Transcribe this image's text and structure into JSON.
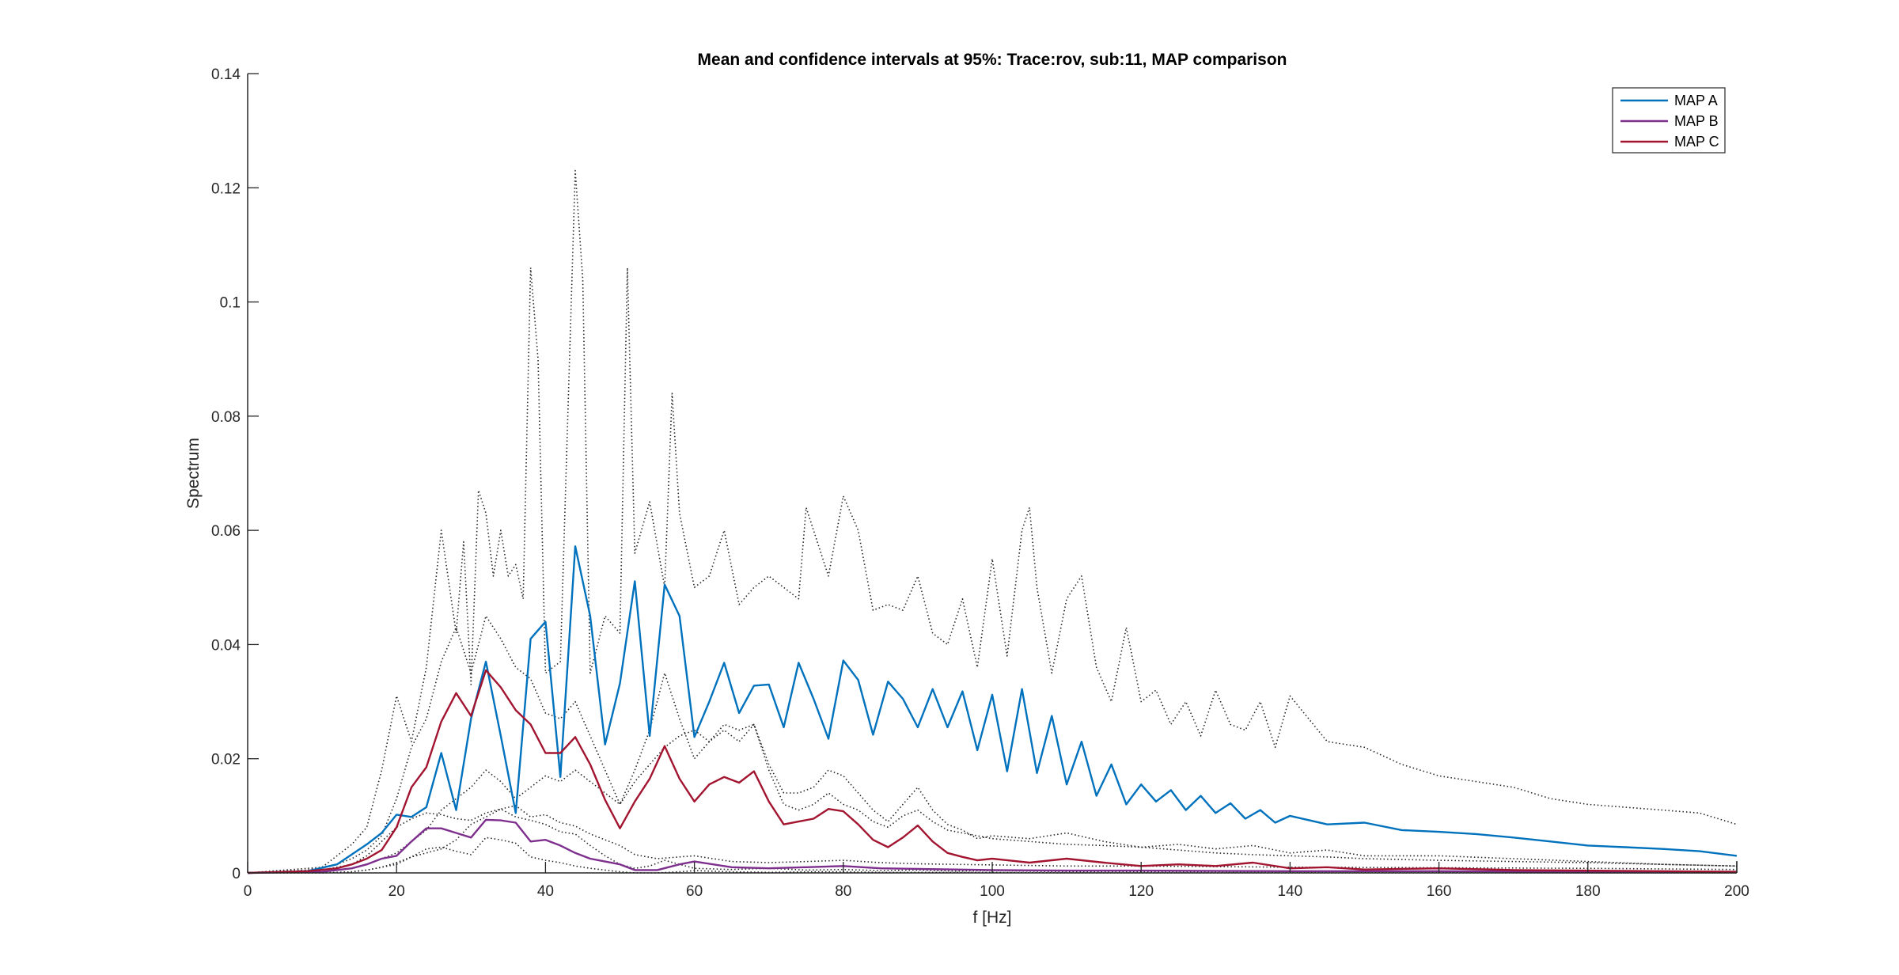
{
  "chart_data": {
    "type": "line",
    "title": "Mean and confidence intervals at 95%: Trace:rov, sub:11, MAP comparison",
    "xlabel": "f [Hz]",
    "ylabel": "Spectrum",
    "xlim": [
      0,
      200
    ],
    "ylim": [
      0,
      0.14
    ],
    "xticks": [
      0,
      20,
      40,
      60,
      80,
      100,
      120,
      140,
      160,
      180,
      200
    ],
    "xtick_labels": [
      "0",
      "20",
      "40",
      "60",
      "80",
      "100",
      "120",
      "140",
      "160",
      "180",
      "200"
    ],
    "yticks": [
      0,
      0.02,
      0.04,
      0.06,
      0.08,
      0.1,
      0.12,
      0.14
    ],
    "ytick_labels": [
      "0",
      "0.02",
      "0.04",
      "0.06",
      "0.08",
      "0.1",
      "0.12",
      "0.14"
    ],
    "grid": false,
    "legend_position": "top-right",
    "series": [
      {
        "name": "MAP A",
        "color": "#0072BD",
        "style": "solid",
        "x": [
          0,
          8,
          12,
          16,
          18,
          20,
          22,
          24,
          26,
          28,
          30,
          32,
          34,
          36,
          38,
          40,
          42,
          44,
          46,
          48,
          50,
          52,
          54,
          56,
          58,
          60,
          62,
          64,
          66,
          68,
          70,
          72,
          74,
          76,
          78,
          80,
          82,
          84,
          86,
          88,
          90,
          92,
          94,
          96,
          98,
          100,
          102,
          104,
          106,
          108,
          110,
          112,
          114,
          116,
          118,
          120,
          122,
          124,
          126,
          128,
          130,
          132,
          134,
          136,
          138,
          140,
          145,
          150,
          155,
          160,
          165,
          170,
          175,
          180,
          185,
          190,
          195,
          200
        ],
        "y": [
          0,
          0.0003,
          0.0015,
          0.005,
          0.007,
          0.0102,
          0.0098,
          0.0115,
          0.021,
          0.011,
          0.027,
          0.037,
          0.024,
          0.0105,
          0.041,
          0.044,
          0.0168,
          0.0572,
          0.045,
          0.0225,
          0.0332,
          0.0511,
          0.024,
          0.0505,
          0.045,
          0.0238,
          0.03,
          0.0368,
          0.028,
          0.0328,
          0.033,
          0.0255,
          0.0368,
          0.0305,
          0.0235,
          0.0372,
          0.0338,
          0.0242,
          0.0335,
          0.0305,
          0.0255,
          0.0322,
          0.0255,
          0.0318,
          0.0215,
          0.0312,
          0.0178,
          0.0322,
          0.0175,
          0.0275,
          0.0155,
          0.023,
          0.0135,
          0.019,
          0.012,
          0.0155,
          0.0125,
          0.0145,
          0.011,
          0.0135,
          0.0105,
          0.0122,
          0.0095,
          0.011,
          0.0088,
          0.01,
          0.0085,
          0.0088,
          0.0075,
          0.0072,
          0.0068,
          0.0062,
          0.0055,
          0.0048,
          0.0045,
          0.0042,
          0.0038,
          0.003
        ]
      },
      {
        "name": "MAP B",
        "color": "#7E2F8E",
        "style": "solid",
        "x": [
          0,
          10,
          14,
          16,
          18,
          20,
          22,
          24,
          26,
          28,
          30,
          32,
          34,
          36,
          38,
          40,
          42,
          44,
          46,
          48,
          50,
          52,
          55,
          58,
          60,
          65,
          70,
          75,
          80,
          85,
          90,
          95,
          100,
          110,
          120,
          140,
          160,
          180,
          200
        ],
        "y": [
          0,
          0.0002,
          0.0008,
          0.0015,
          0.0025,
          0.003,
          0.0055,
          0.0078,
          0.0078,
          0.007,
          0.0062,
          0.0093,
          0.0092,
          0.0088,
          0.0055,
          0.0058,
          0.0048,
          0.0035,
          0.0025,
          0.002,
          0.0015,
          0.0005,
          0.0005,
          0.0015,
          0.002,
          0.001,
          0.0008,
          0.001,
          0.0012,
          0.0008,
          0.0007,
          0.0006,
          0.0005,
          0.0004,
          0.0004,
          0.0003,
          0.0003,
          0.0002,
          0.0002
        ]
      },
      {
        "name": "MAP C",
        "color": "#A2142F",
        "style": "solid",
        "x": [
          0,
          8,
          12,
          14,
          16,
          18,
          20,
          22,
          24,
          26,
          28,
          30,
          32,
          34,
          36,
          38,
          40,
          42,
          44,
          46,
          48,
          50,
          52,
          54,
          56,
          58,
          60,
          62,
          64,
          66,
          68,
          70,
          72,
          74,
          76,
          78,
          80,
          82,
          84,
          86,
          88,
          90,
          92,
          94,
          96,
          98,
          100,
          105,
          110,
          115,
          120,
          125,
          130,
          135,
          140,
          145,
          150,
          160,
          170,
          180,
          190,
          200
        ],
        "y": [
          0,
          0.0003,
          0.0008,
          0.0015,
          0.0025,
          0.004,
          0.008,
          0.015,
          0.0185,
          0.0265,
          0.0315,
          0.0275,
          0.0355,
          0.0325,
          0.0285,
          0.026,
          0.021,
          0.021,
          0.0238,
          0.019,
          0.0128,
          0.0078,
          0.0125,
          0.0165,
          0.0222,
          0.0165,
          0.0125,
          0.0155,
          0.0168,
          0.0158,
          0.0178,
          0.0125,
          0.0085,
          0.009,
          0.0095,
          0.0112,
          0.0108,
          0.0085,
          0.0058,
          0.0045,
          0.0062,
          0.0083,
          0.0055,
          0.0035,
          0.0028,
          0.0022,
          0.0025,
          0.0018,
          0.0025,
          0.0018,
          0.0012,
          0.0015,
          0.0012,
          0.0018,
          0.0008,
          0.001,
          0.0006,
          0.0008,
          0.0005,
          0.0004,
          0.0003,
          0.0002
        ]
      },
      {
        "name": "",
        "color": "#262626",
        "style": "dotted",
        "x": [
          0,
          10,
          14,
          16,
          18,
          20,
          22,
          24,
          26,
          28,
          29,
          30,
          31,
          32,
          33,
          34,
          35,
          36,
          37,
          38,
          39,
          40,
          42,
          44,
          45,
          46,
          48,
          50,
          51,
          52,
          54,
          56,
          57,
          58,
          60,
          62,
          64,
          66,
          68,
          70,
          72,
          74,
          75,
          76,
          78,
          80,
          82,
          84,
          86,
          88,
          90,
          92,
          94,
          96,
          98,
          100,
          102,
          104,
          105,
          106,
          108,
          110,
          112,
          114,
          116,
          118,
          120,
          122,
          124,
          126,
          128,
          130,
          132,
          134,
          136,
          138,
          140,
          145,
          150,
          155,
          160,
          165,
          170,
          175,
          180,
          185,
          190,
          195,
          200
        ],
        "y": [
          0,
          0.001,
          0.005,
          0.008,
          0.018,
          0.031,
          0.023,
          0.036,
          0.06,
          0.042,
          0.058,
          0.033,
          0.067,
          0.063,
          0.052,
          0.06,
          0.052,
          0.054,
          0.048,
          0.106,
          0.09,
          0.035,
          0.037,
          0.123,
          0.104,
          0.035,
          0.045,
          0.042,
          0.106,
          0.056,
          0.065,
          0.05,
          0.084,
          0.063,
          0.05,
          0.052,
          0.06,
          0.047,
          0.05,
          0.052,
          0.05,
          0.048,
          0.064,
          0.06,
          0.052,
          0.066,
          0.06,
          0.046,
          0.047,
          0.046,
          0.052,
          0.042,
          0.04,
          0.048,
          0.036,
          0.055,
          0.038,
          0.06,
          0.064,
          0.05,
          0.035,
          0.048,
          0.052,
          0.036,
          0.03,
          0.043,
          0.03,
          0.032,
          0.026,
          0.03,
          0.024,
          0.032,
          0.026,
          0.025,
          0.03,
          0.022,
          0.031,
          0.023,
          0.022,
          0.019,
          0.017,
          0.016,
          0.015,
          0.013,
          0.012,
          0.0115,
          0.011,
          0.0105,
          0.0085
        ]
      },
      {
        "name": "",
        "color": "#262626",
        "style": "dotted",
        "x": [
          0,
          10,
          14,
          16,
          18,
          20,
          22,
          24,
          26,
          28,
          30,
          32,
          34,
          36,
          38,
          40,
          42,
          44,
          46,
          48,
          50,
          52,
          54,
          56,
          58,
          60,
          62,
          64,
          66,
          68,
          70,
          72,
          74,
          76,
          78,
          80,
          82,
          84,
          86,
          88,
          90,
          92,
          94,
          96,
          98,
          100,
          105,
          110,
          115,
          120,
          125,
          130,
          135,
          140,
          145,
          150,
          160,
          170,
          180,
          190,
          200
        ],
        "y": [
          0,
          0.0002,
          0.0008,
          0.0015,
          0.0025,
          0.0035,
          0.0055,
          0.0075,
          0.011,
          0.013,
          0.015,
          0.018,
          0.016,
          0.013,
          0.015,
          0.017,
          0.016,
          0.018,
          0.016,
          0.014,
          0.012,
          0.016,
          0.019,
          0.022,
          0.024,
          0.025,
          0.023,
          0.026,
          0.025,
          0.026,
          0.018,
          0.012,
          0.011,
          0.012,
          0.014,
          0.012,
          0.011,
          0.009,
          0.008,
          0.01,
          0.011,
          0.009,
          0.0075,
          0.007,
          0.0065,
          0.006,
          0.0055,
          0.005,
          0.0048,
          0.0045,
          0.004,
          0.0035,
          0.0032,
          0.003,
          0.0028,
          0.0025,
          0.0022,
          0.002,
          0.0018,
          0.0015,
          0.0012
        ]
      },
      {
        "name": "",
        "color": "#262626",
        "style": "dotted",
        "x": [
          0,
          10,
          14,
          16,
          18,
          20,
          22,
          24,
          26,
          28,
          30,
          32,
          34,
          36,
          38,
          40,
          42,
          44,
          46,
          48,
          50,
          52,
          55,
          58,
          60,
          65,
          70,
          75,
          80,
          85,
          90,
          95,
          100,
          110,
          120,
          140,
          160,
          180,
          200
        ],
        "y": [
          0,
          0.0005,
          0.0015,
          0.003,
          0.0055,
          0.008,
          0.0095,
          0.0105,
          0.0102,
          0.0095,
          0.0092,
          0.0105,
          0.0112,
          0.0118,
          0.0098,
          0.0102,
          0.0088,
          0.0082,
          0.0068,
          0.0058,
          0.0048,
          0.0032,
          0.0025,
          0.0028,
          0.003,
          0.002,
          0.0018,
          0.002,
          0.0022,
          0.0018,
          0.0016,
          0.0015,
          0.0014,
          0.0012,
          0.0012,
          0.001,
          0.0009,
          0.0008,
          0.0006
        ]
      },
      {
        "name": "",
        "color": "#262626",
        "style": "dotted",
        "x": [
          0,
          10,
          14,
          16,
          18,
          20,
          22,
          24,
          26,
          28,
          30,
          32,
          34,
          36,
          38,
          40,
          42,
          44,
          46,
          48,
          50,
          52,
          55,
          58,
          60,
          65,
          70,
          75,
          80,
          85,
          90,
          95,
          100,
          110,
          120,
          140,
          160,
          180,
          200
        ],
        "y": [
          0,
          0,
          0.0002,
          0.0005,
          0.001,
          0.0015,
          0.0028,
          0.0042,
          0.0045,
          0.0038,
          0.0032,
          0.0062,
          0.0058,
          0.0052,
          0.0028,
          0.0022,
          0.0018,
          0.0012,
          0.0008,
          0.0005,
          0.0002,
          0,
          0,
          0.0002,
          0.0004,
          0.0002,
          0.0001,
          0.0002,
          0.0002,
          0.0001,
          0.0001,
          0.0001,
          0.0001,
          0,
          0,
          0,
          0,
          0,
          0
        ]
      },
      {
        "name": "",
        "color": "#262626",
        "style": "dotted",
        "x": [
          0,
          8,
          12,
          14,
          16,
          18,
          20,
          22,
          24,
          26,
          28,
          30,
          32,
          34,
          36,
          38,
          40,
          42,
          44,
          46,
          48,
          50,
          52,
          54,
          56,
          58,
          60,
          62,
          64,
          66,
          68,
          70,
          72,
          74,
          76,
          78,
          80,
          82,
          84,
          86,
          88,
          90,
          92,
          94,
          96,
          98,
          100,
          105,
          110,
          115,
          120,
          125,
          130,
          135,
          140,
          145,
          150,
          160,
          170,
          180,
          190,
          200
        ],
        "y": [
          0,
          0.0005,
          0.0015,
          0.0025,
          0.004,
          0.0065,
          0.013,
          0.022,
          0.027,
          0.037,
          0.043,
          0.035,
          0.045,
          0.041,
          0.036,
          0.034,
          0.028,
          0.027,
          0.03,
          0.024,
          0.018,
          0.012,
          0.018,
          0.025,
          0.035,
          0.027,
          0.02,
          0.023,
          0.025,
          0.023,
          0.026,
          0.019,
          0.014,
          0.014,
          0.015,
          0.018,
          0.017,
          0.014,
          0.011,
          0.009,
          0.012,
          0.015,
          0.011,
          0.0085,
          0.0075,
          0.006,
          0.0065,
          0.006,
          0.007,
          0.0055,
          0.0045,
          0.005,
          0.0042,
          0.0048,
          0.0035,
          0.004,
          0.003,
          0.003,
          0.0025,
          0.002,
          0.0015,
          0.0012
        ]
      },
      {
        "name": "",
        "color": "#262626",
        "style": "dotted",
        "x": [
          0,
          10,
          14,
          16,
          18,
          20,
          22,
          24,
          26,
          28,
          30,
          32,
          34,
          36,
          38,
          40,
          42,
          44,
          46,
          48,
          50,
          52,
          54,
          56,
          58,
          60,
          65,
          70,
          75,
          80,
          85,
          90,
          95,
          100,
          105,
          110,
          120,
          130,
          140,
          150,
          160,
          180,
          200
        ],
        "y": [
          0,
          0,
          0.0002,
          0.0005,
          0.001,
          0.0018,
          0.0028,
          0.0035,
          0.0042,
          0.0058,
          0.0085,
          0.0098,
          0.0112,
          0.0098,
          0.0092,
          0.0085,
          0.0072,
          0.0068,
          0.0048,
          0.003,
          0.0015,
          0.0008,
          0.0012,
          0.0022,
          0.0015,
          0.0008,
          0.0006,
          0.0008,
          0.0005,
          0.0006,
          0.0004,
          0.0005,
          0.0003,
          0.0004,
          0.0003,
          0.0002,
          0.0002,
          0.0002,
          0.0001,
          0.0001,
          0.0001,
          0,
          0
        ]
      }
    ]
  }
}
